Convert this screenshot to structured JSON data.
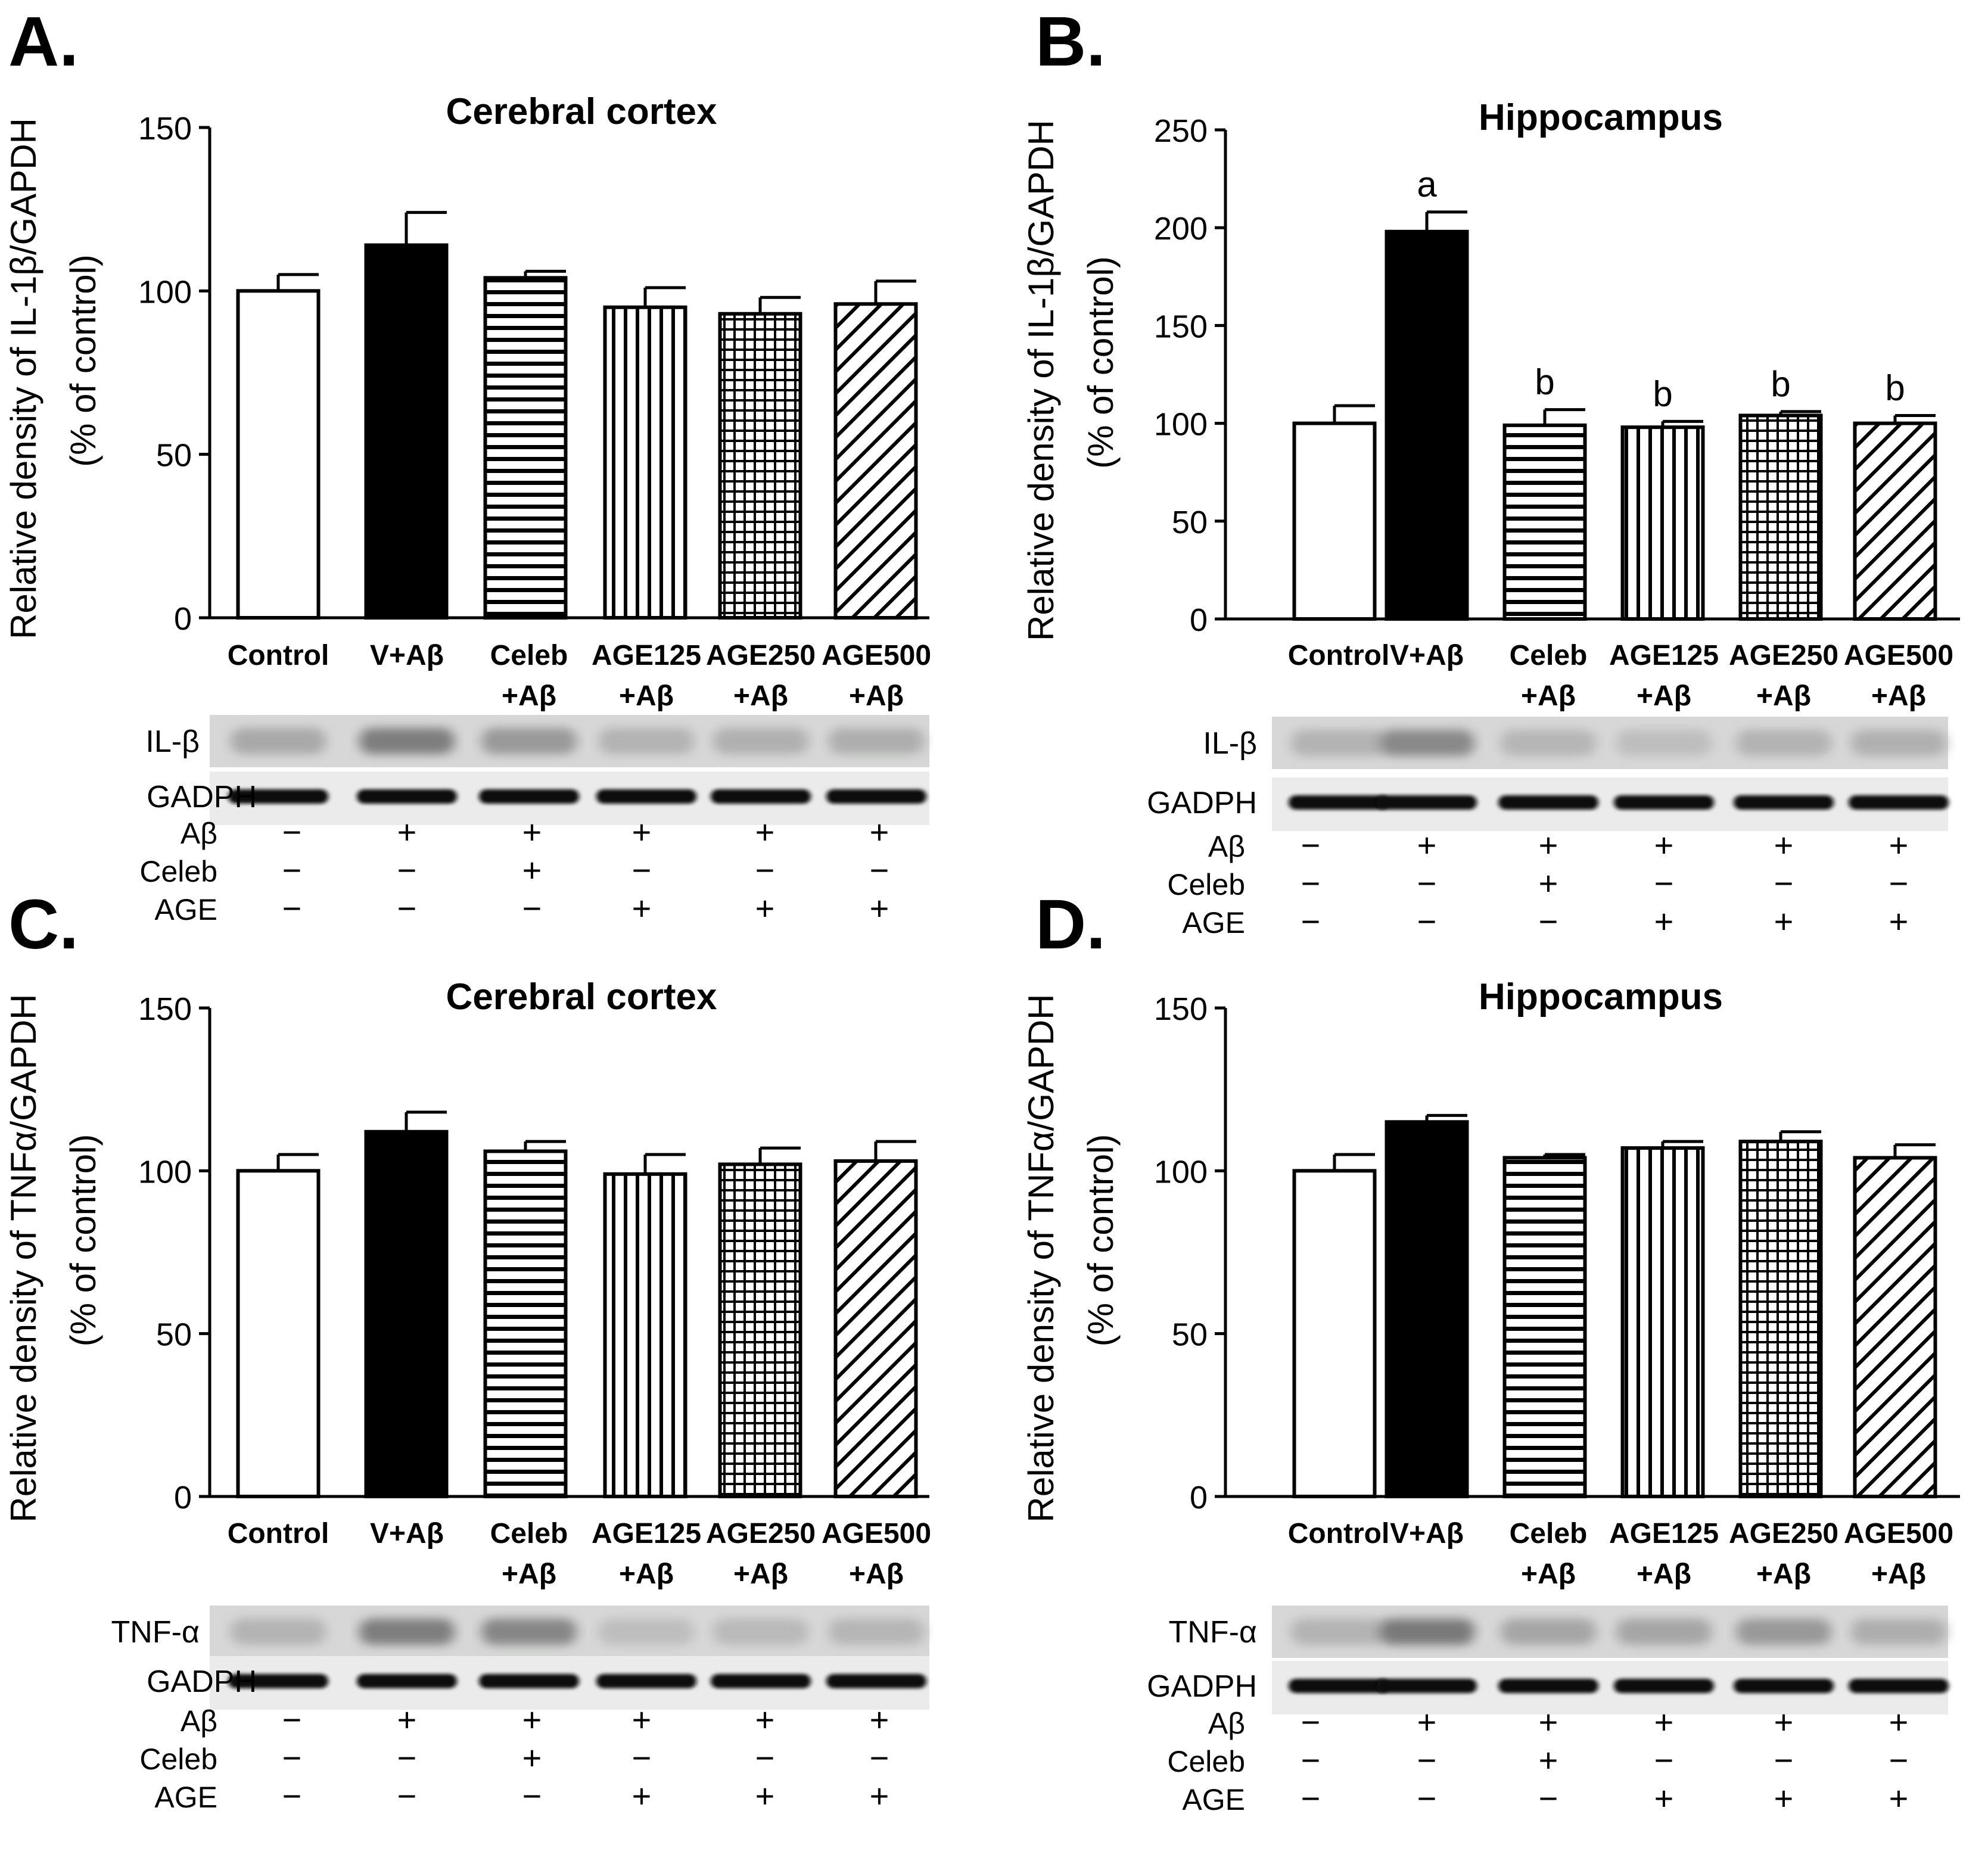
{
  "panels": [
    {
      "letter": "A.",
      "title": "Cerebral cortex",
      "ylabel1": "Relative density of IL-1β/GAPDH",
      "ylabel2": "(% of control)",
      "blot_label": "IL-β",
      "gapdh_label": "GADPH"
    },
    {
      "letter": "B.",
      "title": "Hippocampus",
      "ylabel1": "Relative density of IL-1β/GAPDH",
      "ylabel2": "(% of control)",
      "blot_label": "IL-β",
      "gapdh_label": "GADPH"
    },
    {
      "letter": "C.",
      "title": "Cerebral cortex",
      "ylabel1": "Relative density of TNFα/GAPDH",
      "ylabel2": "(% of control)",
      "blot_label": "TNF-α",
      "gapdh_label": "GADPH"
    },
    {
      "letter": "D.",
      "title": "Hippocampus",
      "ylabel1": "Relative density of TNFα/GAPDH",
      "ylabel2": "(% of control)",
      "blot_label": "TNF-α",
      "gapdh_label": "GADPH"
    }
  ],
  "treatment_table": {
    "row_labels": [
      "Aβ",
      "Celeb",
      "AGE"
    ],
    "rows": [
      [
        "−",
        "+",
        "+",
        "+",
        "+",
        "+"
      ],
      [
        "−",
        "−",
        "+",
        "−",
        "−",
        "−"
      ],
      [
        "−",
        "−",
        "−",
        "+",
        "+",
        "+"
      ]
    ]
  },
  "chart_data": [
    {
      "type": "bar",
      "title": "Cerebral cortex",
      "ylabel": "Relative density of IL-1β/GAPDH (% of control)",
      "categories": [
        "Control",
        "V+Aβ",
        "Celeb +Aβ",
        "AGE125 +Aβ",
        "AGE250 +Aβ",
        "AGE500 +Aβ"
      ],
      "category_lines": [
        [
          "Control"
        ],
        [
          "V+Aβ"
        ],
        [
          "Celeb",
          "+Aβ"
        ],
        [
          "AGE125",
          "+Aβ"
        ],
        [
          "AGE250",
          "+Aβ"
        ],
        [
          "AGE500",
          "+Aβ"
        ]
      ],
      "values": [
        100,
        114,
        104,
        95,
        93,
        96
      ],
      "errors": [
        5,
        10,
        2,
        6,
        5,
        7
      ],
      "ylim": [
        0,
        150
      ],
      "yticks": [
        0,
        50,
        100,
        150
      ],
      "annotations": [
        "",
        "",
        "",
        "",
        "",
        ""
      ],
      "fills": [
        "white",
        "black",
        "hlines",
        "vlines",
        "grid",
        "diag"
      ]
    },
    {
      "type": "bar",
      "title": "Hippocampus",
      "ylabel": "Relative density of IL-1β/GAPDH (% of control)",
      "categories": [
        "Control",
        "V+Aβ",
        "Celeb +Aβ",
        "AGE125 +Aβ",
        "AGE250 +Aβ",
        "AGE500 +Aβ"
      ],
      "category_lines": [
        [
          "Control"
        ],
        [
          "V+Aβ"
        ],
        [
          "Celeb",
          "+Aβ"
        ],
        [
          "AGE125",
          "+Aβ"
        ],
        [
          "AGE250",
          "+Aβ"
        ],
        [
          "AGE500",
          "+Aβ"
        ]
      ],
      "values": [
        100,
        198,
        99,
        98,
        104,
        100
      ],
      "errors": [
        9,
        10,
        8,
        3,
        2,
        4
      ],
      "ylim": [
        0,
        250
      ],
      "yticks": [
        0,
        50,
        100,
        150,
        200,
        250
      ],
      "annotations": [
        "",
        "a",
        "b",
        "b",
        "b",
        "b"
      ],
      "fills": [
        "white",
        "black",
        "hlines",
        "vlines",
        "grid",
        "diag"
      ]
    },
    {
      "type": "bar",
      "title": "Cerebral cortex",
      "ylabel": "Relative density of TNFα/GAPDH (% of control)",
      "categories": [
        "Control",
        "V+Aβ",
        "Celeb +Aβ",
        "AGE125 +Aβ",
        "AGE250 +Aβ",
        "AGE500 +Aβ"
      ],
      "category_lines": [
        [
          "Control"
        ],
        [
          "V+Aβ"
        ],
        [
          "Celeb",
          "+Aβ"
        ],
        [
          "AGE125",
          "+Aβ"
        ],
        [
          "AGE250",
          "+Aβ"
        ],
        [
          "AGE500",
          "+Aβ"
        ]
      ],
      "values": [
        100,
        112,
        106,
        99,
        102,
        103
      ],
      "errors": [
        5,
        6,
        3,
        6,
        5,
        6
      ],
      "ylim": [
        0,
        150
      ],
      "yticks": [
        0,
        50,
        100,
        150
      ],
      "annotations": [
        "",
        "",
        "",
        "",
        "",
        ""
      ],
      "fills": [
        "white",
        "black",
        "hlines",
        "vlines",
        "grid",
        "diag"
      ]
    },
    {
      "type": "bar",
      "title": "Hippocampus",
      "ylabel": "Relative density of TNFα/GAPDH (% of control)",
      "categories": [
        "Control",
        "V+Aβ",
        "Celeb +Aβ",
        "AGE125 +Aβ",
        "AGE250 +Aβ",
        "AGE500 +Aβ"
      ],
      "category_lines": [
        [
          "Control"
        ],
        [
          "V+Aβ"
        ],
        [
          "Celeb",
          "+Aβ"
        ],
        [
          "AGE125",
          "+Aβ"
        ],
        [
          "AGE250",
          "+Aβ"
        ],
        [
          "AGE500",
          "+Aβ"
        ]
      ],
      "values": [
        100,
        115,
        104,
        107,
        109,
        104
      ],
      "errors": [
        5,
        2,
        1,
        2,
        3,
        4
      ],
      "ylim": [
        0,
        150
      ],
      "yticks": [
        0,
        50,
        100,
        150
      ],
      "annotations": [
        "",
        "",
        "",
        "",
        "",
        ""
      ],
      "fills": [
        "white",
        "black",
        "hlines",
        "vlines",
        "grid",
        "diag"
      ]
    }
  ]
}
